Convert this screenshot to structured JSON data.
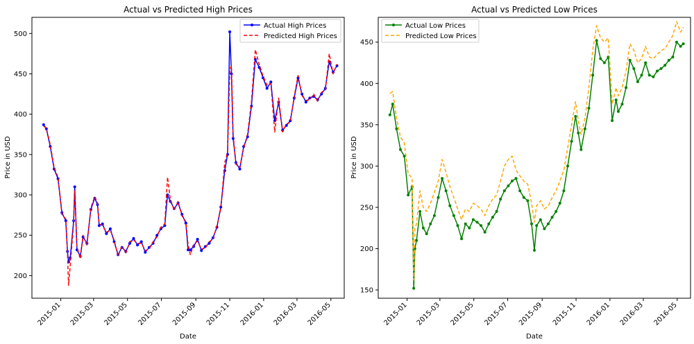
{
  "chart_data": [
    {
      "type": "line",
      "title": "Actual vs Predicted High Prices",
      "xlabel": "Date",
      "ylabel": "Price in USD",
      "x_tick_labels": [
        "2015-01",
        "2015-03",
        "2015-05",
        "2015-07",
        "2015-09",
        "2015-11",
        "2016-01",
        "2016-03",
        "2016-05"
      ],
      "y_ticks": [
        200,
        250,
        300,
        350,
        400,
        450,
        500
      ],
      "ylim": [
        172,
        520
      ],
      "xlim": [
        "2014-11-10",
        "2016-05-25"
      ],
      "legend": "top-right",
      "grid": false,
      "x": [
        "2014-12-01",
        "2014-12-06",
        "2014-12-13",
        "2014-12-20",
        "2014-12-27",
        "2015-01-03",
        "2015-01-10",
        "2015-01-13",
        "2015-01-15",
        "2015-01-18",
        "2015-01-24",
        "2015-01-26",
        "2015-01-30",
        "2015-02-05",
        "2015-02-10",
        "2015-02-17",
        "2015-02-24",
        "2015-03-03",
        "2015-03-08",
        "2015-03-11",
        "2015-03-17",
        "2015-03-24",
        "2015-03-31",
        "2015-04-07",
        "2015-04-14",
        "2015-04-21",
        "2015-04-28",
        "2015-05-05",
        "2015-05-12",
        "2015-05-19",
        "2015-05-26",
        "2015-06-02",
        "2015-06-09",
        "2015-06-16",
        "2015-06-23",
        "2015-06-30",
        "2015-07-07",
        "2015-07-12",
        "2015-07-17",
        "2015-07-24",
        "2015-07-31",
        "2015-08-07",
        "2015-08-14",
        "2015-08-18",
        "2015-08-22",
        "2015-08-28",
        "2015-09-04",
        "2015-09-11",
        "2015-09-18",
        "2015-09-25",
        "2015-10-02",
        "2015-10-09",
        "2015-10-16",
        "2015-10-23",
        "2015-10-28",
        "2015-11-01",
        "2015-11-04",
        "2015-11-07",
        "2015-11-12",
        "2015-11-19",
        "2015-11-26",
        "2015-12-03",
        "2015-12-10",
        "2015-12-17",
        "2015-12-24",
        "2015-12-31",
        "2016-01-07",
        "2016-01-14",
        "2016-01-21",
        "2016-01-28",
        "2016-02-04",
        "2016-02-11",
        "2016-02-18",
        "2016-02-25",
        "2016-03-03",
        "2016-03-10",
        "2016-03-17",
        "2016-03-24",
        "2016-03-31",
        "2016-04-07",
        "2016-04-14",
        "2016-04-21",
        "2016-04-28",
        "2016-05-05",
        "2016-05-12"
      ],
      "series": [
        {
          "name": "Actual High Prices",
          "color": "#0000ff",
          "style": "solid",
          "marker": "dot",
          "values": [
            387,
            382,
            360,
            332,
            320,
            278,
            268,
            230,
            217,
            222,
            268,
            310,
            232,
            224,
            248,
            240,
            282,
            296,
            288,
            262,
            264,
            252,
            258,
            242,
            226,
            235,
            230,
            240,
            246,
            238,
            242,
            229,
            235,
            240,
            250,
            258,
            262,
            300,
            292,
            283,
            290,
            276,
            265,
            232,
            232,
            236,
            245,
            231,
            236,
            240,
            247,
            260,
            285,
            330,
            350,
            502,
            450,
            370,
            340,
            332,
            360,
            372,
            410,
            468,
            458,
            445,
            432,
            440,
            392,
            415,
            380,
            386,
            392,
            420,
            445,
            425,
            415,
            420,
            422,
            418,
            425,
            432,
            465,
            452,
            460
          ]
        },
        {
          "name": "Predicted High Prices",
          "color": "#ff0000",
          "style": "dashed",
          "values": [
            385,
            383,
            362,
            334,
            322,
            276,
            270,
            228,
            188,
            212,
            265,
            305,
            236,
            221,
            250,
            238,
            284,
            298,
            290,
            264,
            262,
            254,
            256,
            244,
            224,
            237,
            228,
            242,
            244,
            240,
            240,
            231,
            233,
            242,
            248,
            260,
            264,
            322,
            295,
            281,
            292,
            274,
            267,
            238,
            226,
            238,
            243,
            233,
            234,
            242,
            245,
            262,
            283,
            340,
            352,
            455,
            460,
            375,
            338,
            334,
            358,
            375,
            415,
            480,
            462,
            447,
            436,
            438,
            378,
            420,
            378,
            388,
            390,
            422,
            448,
            423,
            417,
            418,
            425,
            416,
            427,
            430,
            475,
            450,
            462
          ]
        }
      ]
    },
    {
      "type": "line",
      "title": "Actual vs Predicted Low Prices",
      "xlabel": "Date",
      "ylabel": "Price in USD",
      "x_tick_labels": [
        "2015-01",
        "2015-03",
        "2015-05",
        "2015-07",
        "2015-09",
        "2015-11",
        "2016-01",
        "2016-03",
        "2016-05"
      ],
      "y_ticks": [
        150,
        200,
        250,
        300,
        350,
        400,
        450
      ],
      "ylim": [
        140,
        480
      ],
      "xlim": [
        "2014-11-10",
        "2016-05-25"
      ],
      "legend": "top-left",
      "grid": false,
      "x": [
        "2014-12-01",
        "2014-12-06",
        "2014-12-13",
        "2014-12-20",
        "2014-12-27",
        "2015-01-03",
        "2015-01-10",
        "2015-01-13",
        "2015-01-15",
        "2015-01-18",
        "2015-01-24",
        "2015-01-30",
        "2015-02-05",
        "2015-02-12",
        "2015-02-19",
        "2015-02-26",
        "2015-03-05",
        "2015-03-12",
        "2015-03-19",
        "2015-03-26",
        "2015-04-02",
        "2015-04-09",
        "2015-04-16",
        "2015-04-23",
        "2015-04-30",
        "2015-05-07",
        "2015-05-14",
        "2015-05-21",
        "2015-05-28",
        "2015-06-04",
        "2015-06-11",
        "2015-06-18",
        "2015-06-25",
        "2015-07-02",
        "2015-07-09",
        "2015-07-16",
        "2015-07-23",
        "2015-07-30",
        "2015-08-06",
        "2015-08-13",
        "2015-08-18",
        "2015-08-22",
        "2015-08-29",
        "2015-09-05",
        "2015-09-12",
        "2015-09-19",
        "2015-09-26",
        "2015-10-03",
        "2015-10-10",
        "2015-10-17",
        "2015-10-24",
        "2015-10-31",
        "2015-11-05",
        "2015-11-10",
        "2015-11-17",
        "2015-11-24",
        "2015-12-01",
        "2015-12-08",
        "2015-12-15",
        "2015-12-22",
        "2015-12-29",
        "2016-01-05",
        "2016-01-12",
        "2016-01-16",
        "2016-01-23",
        "2016-01-30",
        "2016-02-06",
        "2016-02-13",
        "2016-02-20",
        "2016-02-27",
        "2016-03-05",
        "2016-03-12",
        "2016-03-19",
        "2016-03-26",
        "2016-04-02",
        "2016-04-09",
        "2016-04-16",
        "2016-04-23",
        "2016-04-30",
        "2016-05-07",
        "2016-05-12"
      ],
      "series": [
        {
          "name": "Actual Low Prices",
          "color": "#008000",
          "style": "solid",
          "marker": "dot",
          "values": [
            362,
            375,
            345,
            320,
            312,
            265,
            275,
            152,
            200,
            210,
            245,
            225,
            218,
            230,
            240,
            262,
            285,
            270,
            252,
            240,
            228,
            212,
            230,
            225,
            235,
            232,
            228,
            220,
            230,
            238,
            245,
            260,
            270,
            276,
            282,
            285,
            270,
            262,
            258,
            230,
            198,
            228,
            235,
            224,
            230,
            238,
            245,
            255,
            270,
            300,
            330,
            360,
            340,
            320,
            345,
            370,
            410,
            452,
            430,
            425,
            432,
            355,
            380,
            366,
            375,
            395,
            428,
            418,
            402,
            410,
            425,
            410,
            408,
            415,
            418,
            422,
            428,
            432,
            450,
            445,
            448
          ]
        },
        {
          "name": "Predicted Low Prices",
          "color": "#ffa500",
          "style": "dashed",
          "values": [
            388,
            390,
            358,
            335,
            328,
            290,
            286,
            162,
            225,
            230,
            270,
            250,
            245,
            255,
            268,
            282,
            308,
            292,
            275,
            262,
            248,
            235,
            248,
            245,
            255,
            252,
            248,
            240,
            252,
            260,
            265,
            282,
            300,
            308,
            312,
            295,
            288,
            282,
            278,
            255,
            232,
            252,
            258,
            248,
            252,
            262,
            270,
            282,
            295,
            322,
            350,
            378,
            355,
            338,
            358,
            395,
            440,
            470,
            455,
            450,
            455,
            375,
            395,
            385,
            395,
            415,
            448,
            440,
            425,
            430,
            445,
            432,
            430,
            435,
            440,
            442,
            450,
            458,
            475,
            462,
            468
          ]
        }
      ]
    }
  ]
}
